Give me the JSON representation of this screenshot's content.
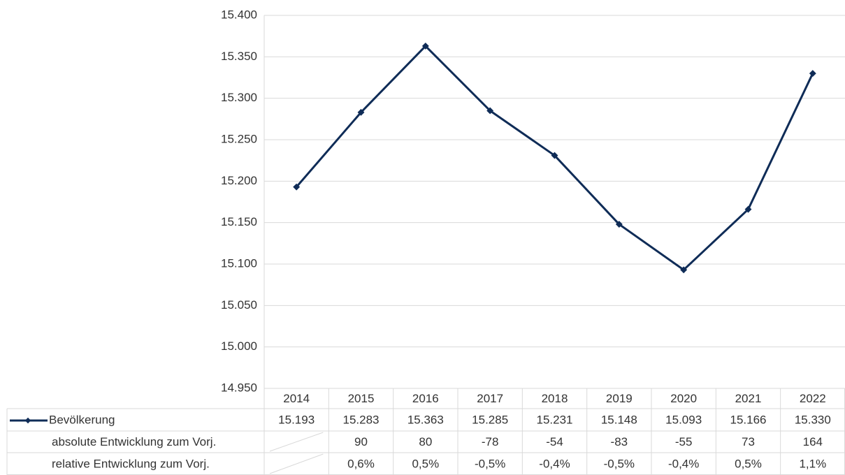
{
  "chart_data": {
    "type": "line",
    "categories": [
      "2014",
      "2015",
      "2016",
      "2017",
      "2018",
      "2019",
      "2020",
      "2021",
      "2022"
    ],
    "series": [
      {
        "name": "Bevölkerung",
        "color": "#0f2c57",
        "values": [
          15193,
          15283,
          15363,
          15285,
          15231,
          15148,
          15093,
          15166,
          15330
        ],
        "value_labels": [
          "15.193",
          "15.283",
          "15.363",
          "15.285",
          "15.231",
          "15.148",
          "15.093",
          "15.166",
          "15.330"
        ]
      }
    ],
    "ylim": [
      14950,
      15400
    ],
    "yticks": [
      {
        "value": 14950,
        "label": "14.950"
      },
      {
        "value": 15000,
        "label": "15.000"
      },
      {
        "value": 15050,
        "label": "15.050"
      },
      {
        "value": 15100,
        "label": "15.100"
      },
      {
        "value": 15150,
        "label": "15.150"
      },
      {
        "value": 15200,
        "label": "15.200"
      },
      {
        "value": 15250,
        "label": "15.250"
      },
      {
        "value": 15300,
        "label": "15.300"
      },
      {
        "value": 15350,
        "label": "15.350"
      },
      {
        "value": 15400,
        "label": "15.400"
      }
    ],
    "grid": true,
    "data_table": {
      "rows": [
        {
          "label": "absolute Entwicklung zum Vorj.",
          "values": [
            null,
            90,
            80,
            -78,
            -54,
            -83,
            -55,
            73,
            164
          ]
        },
        {
          "label": "relative Entwicklung zum Vorj.",
          "values": [
            null,
            0.6,
            0.5,
            -0.5,
            -0.4,
            -0.5,
            -0.4,
            0.5,
            1.1
          ],
          "value_labels": [
            null,
            "0,6%",
            "0,5%",
            "-0,5%",
            "-0,4%",
            "-0,5%",
            "-0,4%",
            "0,5%",
            "1,1%"
          ]
        }
      ]
    }
  }
}
